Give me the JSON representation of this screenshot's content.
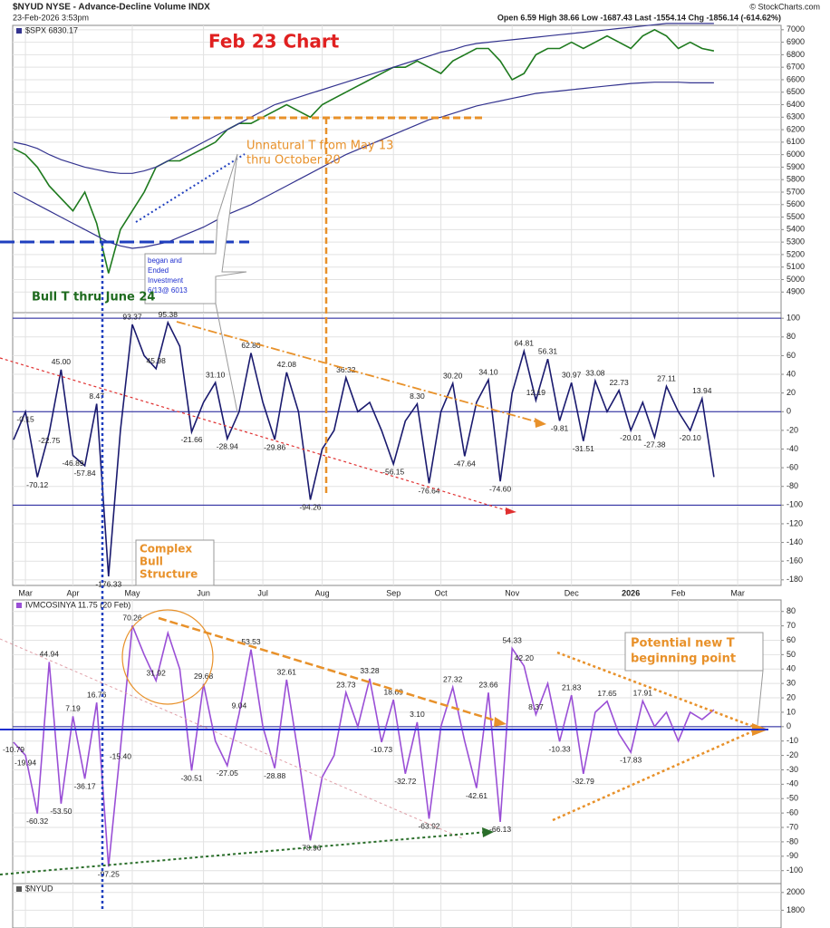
{
  "header": {
    "symbol": "$NYUD NYSE - Advance-Decline Volume INDX",
    "date": "23-Feb-2026 3:53pm",
    "quote": "Open 6.59  High 38.66  Low -1687.43  Last -1554.14  Chg -1856.14 (-614.62%)",
    "credit": "© StockCharts.com"
  },
  "annotations": {
    "title": "Feb 23 Chart",
    "unnatural_t": [
      "Unnatural T from May 13",
      "thru October 20"
    ],
    "investment": [
      "began and",
      "Ended",
      "Investment",
      "6/13@ 6013"
    ],
    "bull_t": "Bull T thru June 24",
    "complex": [
      "Complex",
      "Bull",
      "Structure"
    ],
    "potential": [
      "Potential new T",
      "beginning point"
    ]
  },
  "chart_data": {
    "type": "panels",
    "categories": [
      null,
      "Mar",
      null,
      null,
      null,
      "Apr",
      null,
      null,
      null,
      null,
      "May",
      null,
      null,
      null,
      null,
      null,
      "Jun",
      null,
      null,
      null,
      null,
      "Jul",
      null,
      null,
      null,
      null,
      "Aug",
      null,
      null,
      null,
      null,
      null,
      "Sep",
      null,
      null,
      null,
      "Oct",
      null,
      null,
      null,
      null,
      null,
      "Nov",
      null,
      null,
      null,
      null,
      "Dec",
      null,
      null,
      null,
      null,
      "2026",
      null,
      null,
      null,
      "Feb",
      null,
      null,
      null,
      null,
      "Mar",
      null
    ],
    "panels": [
      {
        "type": "line",
        "legend": "$SPX 6830.17",
        "ylim": [
          4735,
          7035
        ],
        "yticks": [
          4900,
          5000,
          5100,
          5200,
          5300,
          5400,
          5500,
          5600,
          5700,
          5800,
          5900,
          6000,
          6100,
          6200,
          6300,
          6400,
          6500,
          6600,
          6700,
          6800,
          6900,
          7000
        ],
        "grid": true,
        "series": [
          {
            "color": "#1e7a1e",
            "values": [
              6050,
              6000,
              5900,
              5750,
              5650,
              5550,
              5700,
              5450,
              5050,
              5400,
              5550,
              5700,
              5900,
              5950,
              5950,
              6000,
              6050,
              6100,
              6200,
              6250,
              6250,
              6300,
              6350,
              6400,
              6350,
              6300,
              6400,
              6450,
              6500,
              6550,
              6600,
              6650,
              6700,
              6700,
              6750,
              6700,
              6650,
              6750,
              6800,
              6850,
              6850,
              6750,
              6600,
              6650,
              6800,
              6850,
              6850,
              6900,
              6850,
              6900,
              6950,
              6900,
              6850,
              6950,
              7000,
              6950,
              6850,
              6900,
              6850,
              6830.17
            ]
          },
          {
            "color": "#33338f",
            "values": [
              6100,
              6080,
              6050,
              6000,
              5960,
              5930,
              5900,
              5880,
              5860,
              5850,
              5850,
              5870,
              5900,
              5950,
              6000,
              6050,
              6100,
              6150,
              6200,
              6250,
              6300,
              6350,
              6400,
              6430,
              6460,
              6490,
              6520,
              6550,
              6580,
              6610,
              6640,
              6670,
              6700,
              6730,
              6760,
              6790,
              6820,
              6840,
              6870,
              6890,
              6900,
              6910,
              6920,
              6930,
              6940,
              6950,
              6960,
              6970,
              6980,
              6990,
              7000,
              7010,
              7020,
              7030,
              7040,
              7050,
              7050,
              7050,
              7050,
              7050
            ]
          },
          {
            "color": "#33338f",
            "values": [
              5700,
              5650,
              5600,
              5550,
              5500,
              5450,
              5400,
              5350,
              5300,
              5270,
              5250,
              5260,
              5280,
              5300,
              5340,
              5380,
              5420,
              5470,
              5520,
              5560,
              5600,
              5650,
              5700,
              5750,
              5800,
              5850,
              5900,
              5950,
              6000,
              6040,
              6080,
              6120,
              6160,
              6200,
              6240,
              6280,
              6300,
              6330,
              6360,
              6390,
              6410,
              6430,
              6450,
              6470,
              6490,
              6500,
              6510,
              6520,
              6530,
              6540,
              6550,
              6560,
              6570,
              6575,
              6580,
              6580,
              6580,
              6575,
              6575,
              6575
            ]
          }
        ]
      },
      {
        "type": "line",
        "ylim": [
          -186,
          106
        ],
        "yticks": [
          -180,
          -160,
          -140,
          -120,
          -100,
          -80,
          -60,
          -40,
          -20,
          0,
          20,
          40,
          60,
          80,
          100
        ],
        "grid": true,
        "reference_lines": [
          100,
          0,
          -100
        ],
        "x_axis": true,
        "series": [
          {
            "color": "#1a1a6e",
            "values": [
              -30,
              -0.15,
              -70.12,
              -22.75,
              45.0,
              -46.89,
              -57.84,
              8.47,
              -176.33,
              -20,
              93.37,
              60,
              45.98,
              95.38,
              70,
              -21.66,
              10,
              31.1,
              -28.94,
              0,
              62.8,
              10,
              -29.86,
              42.08,
              0,
              -94.26,
              -40,
              -20,
              36.32,
              0,
              10,
              -20,
              -56.15,
              -10,
              8.3,
              -76.64,
              0,
              30.2,
              -47.64,
              10,
              34.1,
              -74.6,
              20,
              64.81,
              12.19,
              56.31,
              -9.81,
              30.97,
              -31.51,
              33.08,
              0,
              22.73,
              -20.01,
              10,
              -27.38,
              27.11,
              0,
              -20.1,
              13.94,
              -70
            ],
            "value_labels": [
              null,
              "-0.15",
              "-70.12",
              "-22.75",
              "45.00",
              "-46.89",
              "-57.84",
              "8.47",
              "-176.33",
              null,
              "93.37",
              null,
              "45.98",
              "95.38",
              null,
              "-21.66",
              null,
              "31.10",
              "-28.94",
              null,
              "62.80",
              null,
              "-29.86",
              "42.08",
              null,
              "-94.26",
              null,
              null,
              "36.32",
              null,
              null,
              null,
              "-56.15",
              null,
              "8.30",
              "-76.64",
              null,
              "30.20",
              "-47.64",
              null,
              "34.10",
              "-74.60",
              null,
              "64.81",
              "12.19",
              "56.31",
              "-9.81",
              "30.97",
              "-31.51",
              "33.08",
              null,
              "22.73",
              "-20.01",
              null,
              "-27.38",
              "27.11",
              null,
              "-20.10",
              "13.94",
              null
            ]
          }
        ]
      },
      {
        "type": "line",
        "legend": "IVMCOSINYA 11.75 (20 Feb)",
        "ylim": [
          -109,
          88
        ],
        "yticks": [
          -100,
          -90,
          -80,
          -70,
          -60,
          -50,
          -40,
          -30,
          -20,
          -10,
          0,
          10,
          20,
          30,
          40,
          50,
          60,
          70,
          80
        ],
        "grid": true,
        "reference_lines": [
          0
        ],
        "series": [
          {
            "color": "#9a4fd6",
            "values": [
              -10.79,
              -19.94,
              -60.32,
              44.94,
              -53.5,
              7.19,
              -36.17,
              16.76,
              -97.25,
              -15.4,
              70.26,
              50,
              31.92,
              65,
              40,
              -30.51,
              29.68,
              -10,
              -27.05,
              9.04,
              53.53,
              0,
              -28.88,
              32.61,
              -20,
              -78.96,
              -35,
              -20,
              23.73,
              0,
              33.28,
              -10.73,
              18.69,
              -32.72,
              3.1,
              -63.92,
              0,
              27.32,
              -10,
              -42.61,
              23.66,
              -66.13,
              54.33,
              42.2,
              8.37,
              30,
              -10.33,
              21.83,
              -32.79,
              10,
              17.65,
              -5,
              -17.83,
              17.91,
              0,
              10,
              -10,
              10,
              5,
              11.75
            ],
            "value_labels": [
              "-10.79",
              "-19.94",
              "-60.32",
              "44.94",
              "-53.50",
              "7.19",
              "-36.17",
              "16.76",
              "-97.25",
              "-15.40",
              "70.26",
              null,
              "31.92",
              null,
              null,
              "-30.51",
              "29.68",
              null,
              "-27.05",
              "9.04",
              "53.53",
              null,
              "-28.88",
              "32.61",
              null,
              "-78.96",
              null,
              null,
              "23.73",
              null,
              "33.28",
              "-10.73",
              "18.69",
              "-32.72",
              "3.10",
              "-63.92",
              null,
              "27.32",
              null,
              "-42.61",
              "23.66",
              "-66.13",
              "54.33",
              "42.20",
              "8.37",
              null,
              "-10.33",
              "21.83",
              "-32.79",
              null,
              "17.65",
              null,
              "-17.83",
              "17.91",
              null,
              null,
              null,
              null,
              null,
              null
            ]
          }
        ]
      },
      {
        "type": "line",
        "legend": "$NYUD",
        "ylim": [
          1600,
          2100
        ],
        "yticks": [
          1800,
          2000
        ],
        "grid": true,
        "series": []
      }
    ]
  }
}
